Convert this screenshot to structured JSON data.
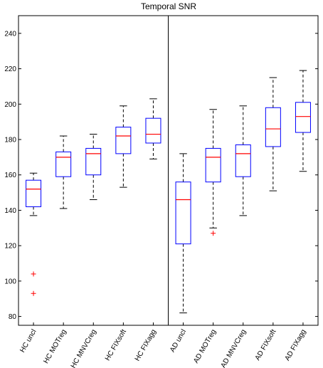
{
  "chart_data": {
    "type": "boxplot",
    "title": "Temporal SNR",
    "xlabel": "",
    "ylabel": "",
    "ylim": [
      75,
      250
    ],
    "yticks": [
      80,
      100,
      120,
      140,
      160,
      180,
      200,
      220,
      240
    ],
    "grid": false,
    "separator_after_category": 5,
    "colors": {
      "box": "#0000ff",
      "median": "#ff0000",
      "whisker": "#000000",
      "outlier": "#ff0000",
      "axes": "#000000"
    },
    "categories": [
      "HC uncl",
      "HC MOTreg",
      "HC MNVCreg",
      "HC FIXsoft",
      "HC FIXagg",
      "AD uncl",
      "AD MOTreg",
      "AD MNVCreg",
      "AD FIXsoft",
      "AD FIXagg"
    ],
    "boxes": [
      {
        "whisker_low": 137,
        "q1": 142,
        "median": 152,
        "q3": 157,
        "whisker_high": 161,
        "outliers": [
          104,
          93
        ]
      },
      {
        "whisker_low": 141,
        "q1": 159,
        "median": 170,
        "q3": 173,
        "whisker_high": 182,
        "outliers": []
      },
      {
        "whisker_low": 146,
        "q1": 160,
        "median": 172,
        "q3": 175,
        "whisker_high": 183,
        "outliers": []
      },
      {
        "whisker_low": 153,
        "q1": 172,
        "median": 182,
        "q3": 187,
        "whisker_high": 199,
        "outliers": []
      },
      {
        "whisker_low": 169,
        "q1": 178,
        "median": 183,
        "q3": 192,
        "whisker_high": 203,
        "outliers": []
      },
      {
        "whisker_low": 82,
        "q1": 121,
        "median": 146,
        "q3": 156,
        "whisker_high": 172,
        "outliers": []
      },
      {
        "whisker_low": 130,
        "q1": 156,
        "median": 170,
        "q3": 175,
        "whisker_high": 197,
        "outliers": [
          127
        ]
      },
      {
        "whisker_low": 137,
        "q1": 159,
        "median": 172,
        "q3": 177,
        "whisker_high": 199,
        "outliers": []
      },
      {
        "whisker_low": 151,
        "q1": 176,
        "median": 186,
        "q3": 198,
        "whisker_high": 215,
        "outliers": []
      },
      {
        "whisker_low": 162,
        "q1": 184,
        "median": 193,
        "q3": 201,
        "whisker_high": 219,
        "outliers": []
      }
    ]
  }
}
